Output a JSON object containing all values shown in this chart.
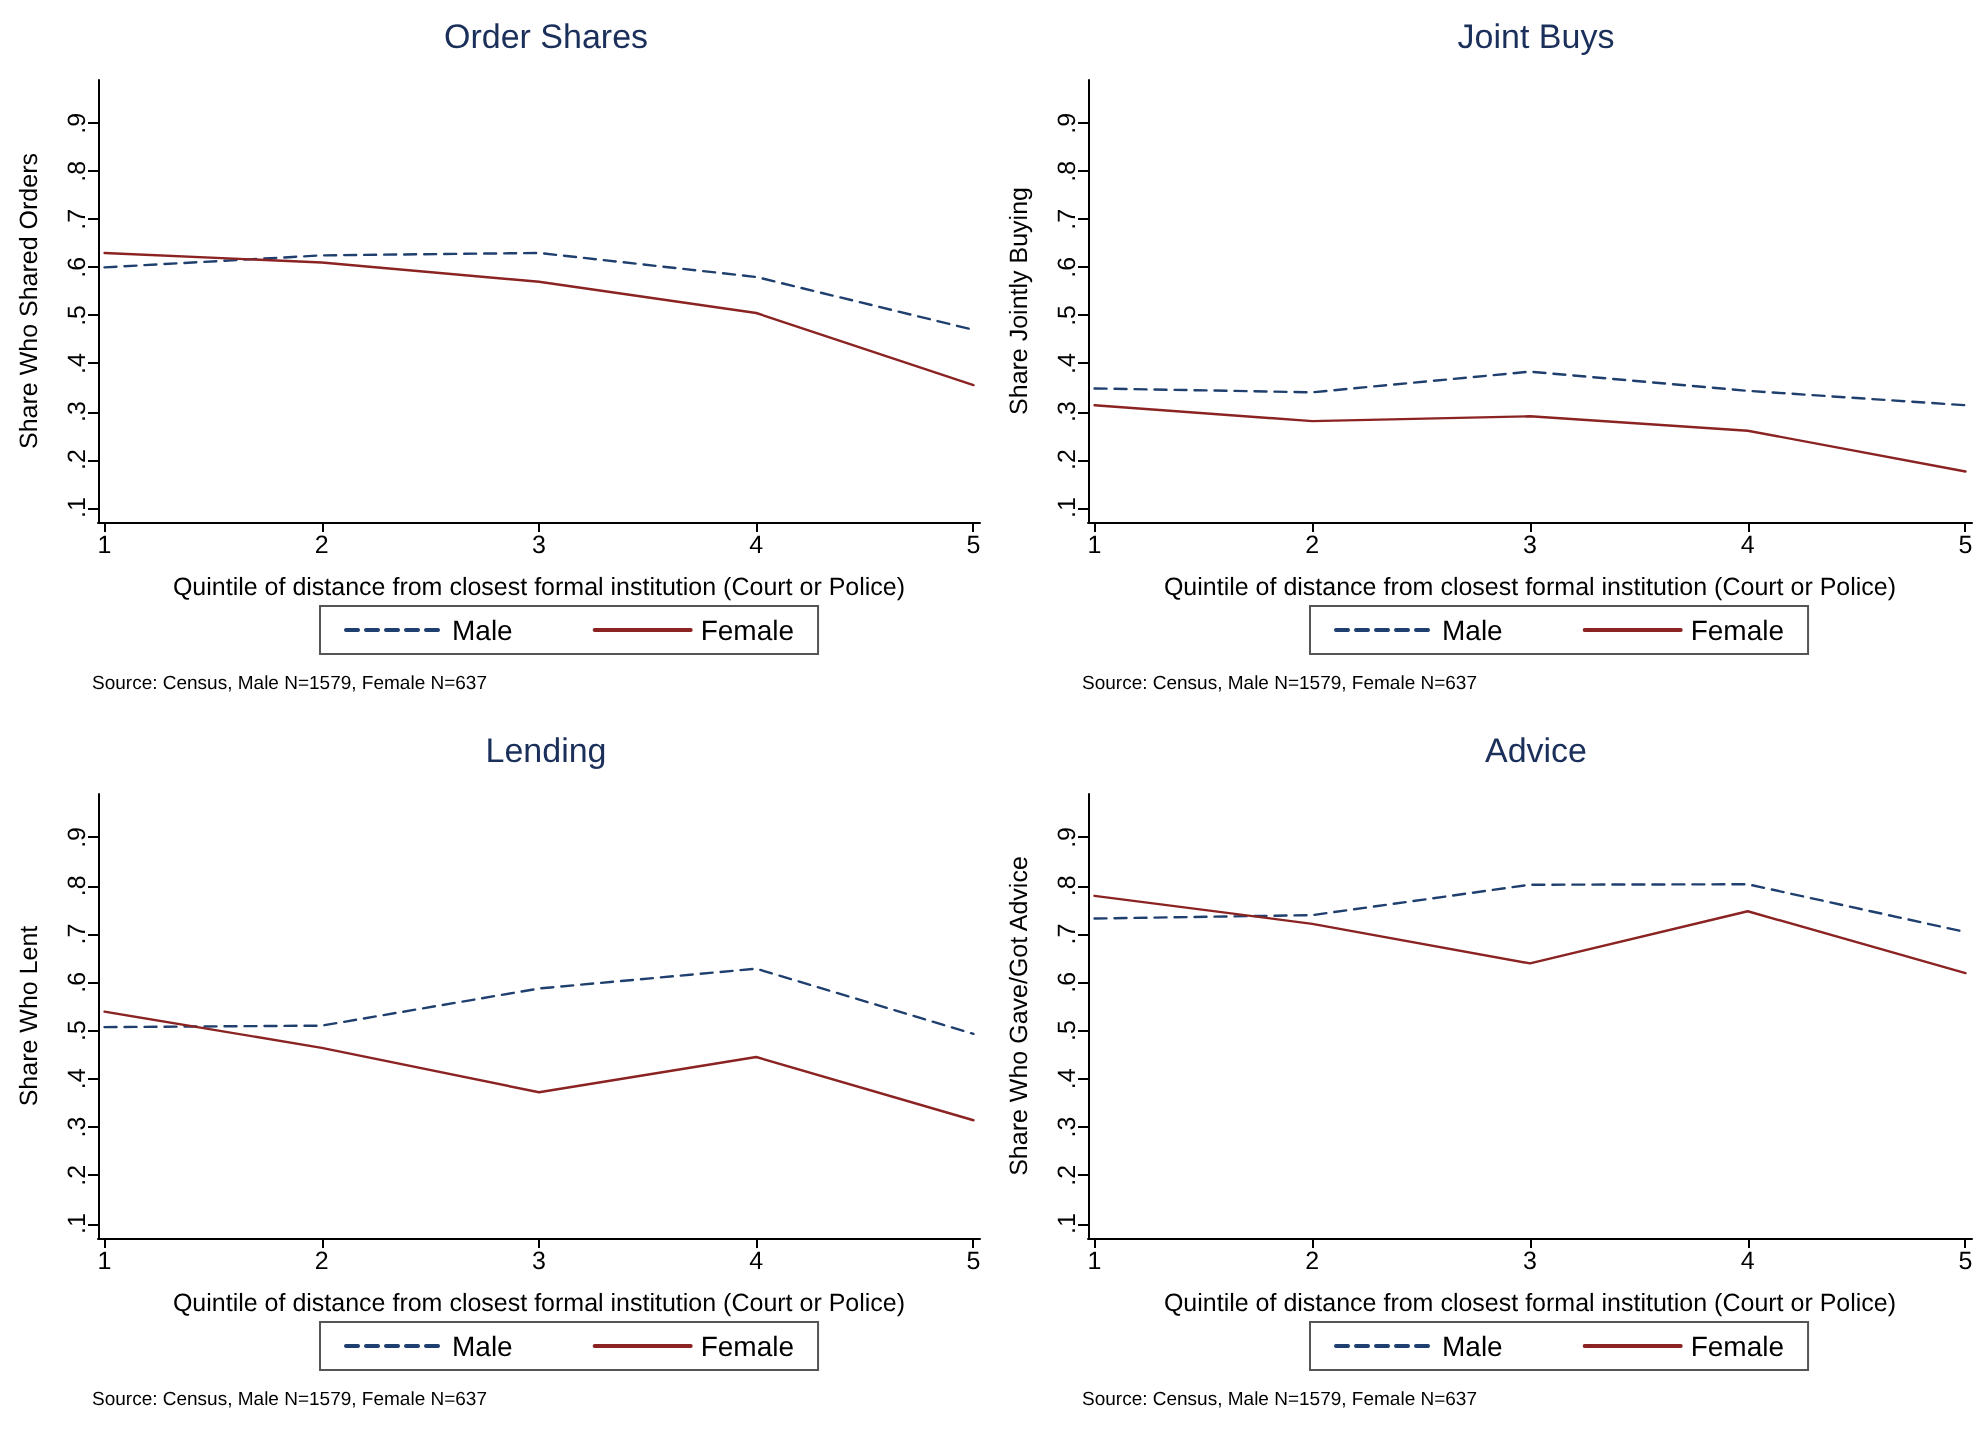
{
  "chart_data": [
    {
      "type": "line",
      "title": "Order Shares",
      "xlabel": "Quintile of distance from closest formal institution (Court or Police)",
      "ylabel": "Share Who Shared Orders",
      "x": [
        1,
        2,
        3,
        4,
        5
      ],
      "xlim": [
        0.97,
        5.03
      ],
      "xticks": [
        1,
        2,
        3,
        4,
        5
      ],
      "ylim": [
        0.07,
        0.99
      ],
      "yticks": [
        {
          "value": 0.1,
          "label": ".1"
        },
        {
          "value": 0.2,
          "label": ".2"
        },
        {
          "value": 0.3,
          "label": ".3"
        },
        {
          "value": 0.4,
          "label": ".4"
        },
        {
          "value": 0.5,
          "label": ".5"
        },
        {
          "value": 0.6,
          "label": ".6"
        },
        {
          "value": 0.7,
          "label": ".7"
        },
        {
          "value": 0.8,
          "label": ".8"
        },
        {
          "value": 0.9,
          "label": ".9"
        }
      ],
      "grid": false,
      "legend": "bottom",
      "marker": "none",
      "series": [
        {
          "name": "Male",
          "color": "#1f3f6e",
          "line_style": "dashed",
          "values": [
            0.6,
            0.625,
            0.63,
            0.58,
            0.47
          ]
        },
        {
          "name": "Female",
          "color": "#8b2323",
          "line_style": "solid",
          "values": [
            0.63,
            0.61,
            0.57,
            0.505,
            0.355
          ]
        }
      ],
      "annotations": [
        "Source: Census, Male N=1579, Female N=637"
      ]
    },
    {
      "type": "line",
      "title": "Joint Buys",
      "xlabel": "Quintile of distance from closest formal institution (Court or Police)",
      "ylabel": "Share Jointly Buying",
      "x": [
        1,
        2,
        3,
        4,
        5
      ],
      "xlim": [
        0.97,
        5.03
      ],
      "xticks": [
        1,
        2,
        3,
        4,
        5
      ],
      "ylim": [
        0.07,
        0.99
      ],
      "yticks": [
        {
          "value": 0.1,
          "label": ".1"
        },
        {
          "value": 0.2,
          "label": ".2"
        },
        {
          "value": 0.3,
          "label": ".3"
        },
        {
          "value": 0.4,
          "label": ".4"
        },
        {
          "value": 0.5,
          "label": ".5"
        },
        {
          "value": 0.6,
          "label": ".6"
        },
        {
          "value": 0.7,
          "label": ".7"
        },
        {
          "value": 0.8,
          "label": ".8"
        },
        {
          "value": 0.9,
          "label": ".9"
        }
      ],
      "grid": false,
      "legend": "bottom",
      "marker": "none",
      "series": [
        {
          "name": "Male",
          "color": "#1f3f6e",
          "line_style": "dashed",
          "values": [
            0.348,
            0.34,
            0.383,
            0.343,
            0.313
          ]
        },
        {
          "name": "Female",
          "color": "#8b2323",
          "line_style": "solid",
          "values": [
            0.313,
            0.28,
            0.29,
            0.26,
            0.175
          ]
        }
      ],
      "annotations": [
        "Source: Census, Male N=1579, Female N=637"
      ]
    },
    {
      "type": "line",
      "title": "Lending",
      "xlabel": "Quintile of distance from closest formal institution (Court or Police)",
      "ylabel": "Share Who Lent",
      "x": [
        1,
        2,
        3,
        4,
        5
      ],
      "xlim": [
        0.97,
        5.03
      ],
      "xticks": [
        1,
        2,
        3,
        4,
        5
      ],
      "ylim": [
        0.07,
        0.99
      ],
      "yticks": [
        {
          "value": 0.1,
          "label": ".1"
        },
        {
          "value": 0.2,
          "label": ".2"
        },
        {
          "value": 0.3,
          "label": ".3"
        },
        {
          "value": 0.4,
          "label": ".4"
        },
        {
          "value": 0.5,
          "label": ".5"
        },
        {
          "value": 0.6,
          "label": ".6"
        },
        {
          "value": 0.7,
          "label": ".7"
        },
        {
          "value": 0.8,
          "label": ".8"
        },
        {
          "value": 0.9,
          "label": ".9"
        }
      ],
      "grid": false,
      "legend": "bottom",
      "marker": "none",
      "series": [
        {
          "name": "Male",
          "color": "#1f3f6e",
          "line_style": "dashed",
          "values": [
            0.507,
            0.51,
            0.587,
            0.628,
            0.493
          ]
        },
        {
          "name": "Female",
          "color": "#8b2323",
          "line_style": "solid",
          "values": [
            0.539,
            0.464,
            0.372,
            0.445,
            0.314
          ]
        }
      ],
      "annotations": [
        "Source: Census, Male N=1579, Female N=637"
      ]
    },
    {
      "type": "line",
      "title": "Advice",
      "xlabel": "Quintile of distance from closest formal institution (Court or Police)",
      "ylabel": "Share Who Gave/Got Advice",
      "x": [
        1,
        2,
        3,
        4,
        5
      ],
      "xlim": [
        0.97,
        5.03
      ],
      "xticks": [
        1,
        2,
        3,
        4,
        5
      ],
      "ylim": [
        0.07,
        0.99
      ],
      "yticks": [
        {
          "value": 0.1,
          "label": ".1"
        },
        {
          "value": 0.2,
          "label": ".2"
        },
        {
          "value": 0.3,
          "label": ".3"
        },
        {
          "value": 0.4,
          "label": ".4"
        },
        {
          "value": 0.5,
          "label": ".5"
        },
        {
          "value": 0.6,
          "label": ".6"
        },
        {
          "value": 0.7,
          "label": ".7"
        },
        {
          "value": 0.8,
          "label": ".8"
        },
        {
          "value": 0.9,
          "label": ".9"
        }
      ],
      "grid": false,
      "legend": "bottom",
      "marker": "none",
      "series": [
        {
          "name": "Male",
          "color": "#1f3f6e",
          "line_style": "dashed",
          "values": [
            0.732,
            0.739,
            0.802,
            0.803,
            0.704
          ]
        },
        {
          "name": "Female",
          "color": "#8b2323",
          "line_style": "solid",
          "values": [
            0.779,
            0.721,
            0.639,
            0.747,
            0.619
          ]
        }
      ],
      "annotations": [
        "Source: Census, Male N=1579, Female N=637"
      ]
    }
  ]
}
